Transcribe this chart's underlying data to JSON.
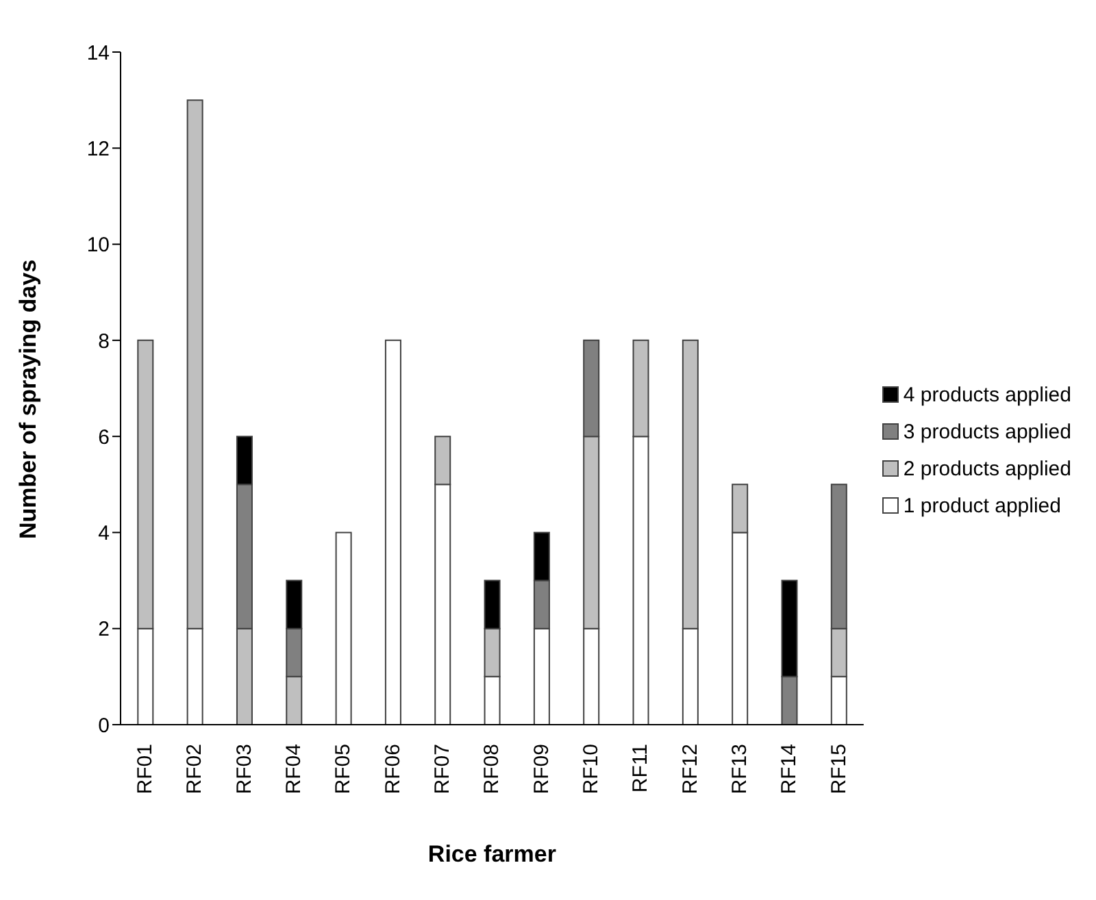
{
  "chart_data": {
    "type": "bar",
    "xlabel": "Rice farmer",
    "ylabel": "Number of spraying  days",
    "categories": [
      "RF01",
      "RF02",
      "RF03",
      "RF04",
      "RF05",
      "RF06",
      "RF07",
      "RF08",
      "RF09",
      "RF10",
      "RF11",
      "RF12",
      "RF13",
      "RF14",
      "RF15"
    ],
    "stacked": true,
    "ylim": [
      0,
      14
    ],
    "yticks": [
      0,
      2,
      4,
      6,
      8,
      10,
      12,
      14
    ],
    "grid": false,
    "legend": "right",
    "series": [
      {
        "name": "1 product applied",
        "color": "#ffffff",
        "values": [
          2,
          2,
          0,
          0,
          4,
          8,
          5,
          1,
          2,
          2,
          6,
          2,
          4,
          0,
          1
        ]
      },
      {
        "name": "2 products applied",
        "color": "#bfbfbf",
        "values": [
          6,
          11,
          2,
          1,
          0,
          0,
          1,
          1,
          0,
          4,
          2,
          6,
          1,
          0,
          1
        ]
      },
      {
        "name": "3 products applied",
        "color": "#808080",
        "values": [
          0,
          0,
          3,
          1,
          0,
          0,
          0,
          0,
          1,
          2,
          0,
          0,
          0,
          1,
          3
        ]
      },
      {
        "name": "4 products applied",
        "color": "#000000",
        "values": [
          0,
          0,
          1,
          1,
          0,
          0,
          0,
          1,
          1,
          0,
          0,
          0,
          0,
          2,
          0
        ]
      }
    ]
  }
}
